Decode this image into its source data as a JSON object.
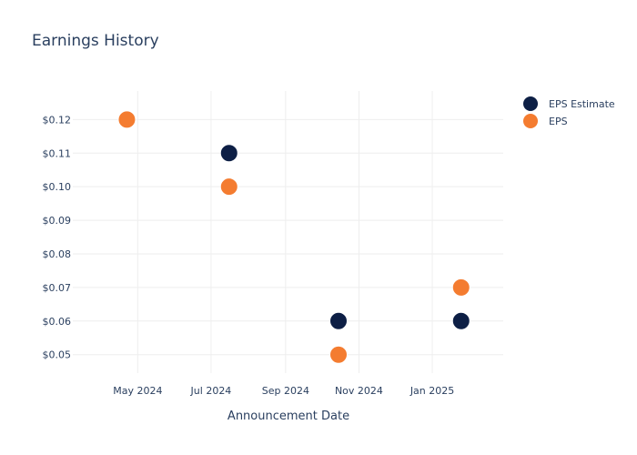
{
  "chart_data": {
    "type": "scatter",
    "title": "Earnings History",
    "xlabel": "Announcement Date",
    "ylabel": "",
    "x_axis_type": "date",
    "xlim": [
      "2024-03-08",
      "2025-03-01"
    ],
    "ylim": [
      0.0445,
      0.1285
    ],
    "y_ticks": [
      0.05,
      0.06,
      0.07,
      0.08,
      0.09,
      0.1,
      0.11,
      0.12
    ],
    "y_tick_labels": [
      "$0.05",
      "$0.06",
      "$0.07",
      "$0.08",
      "$0.09",
      "$0.10",
      "$0.11",
      "$0.12"
    ],
    "x_ticks": [
      "2024-05-01",
      "2024-07-01",
      "2024-09-01",
      "2024-11-01",
      "2025-01-01"
    ],
    "x_tick_labels": [
      "May 2024",
      "Jul 2024",
      "Sep 2024",
      "Nov 2024",
      "Jan 2025"
    ],
    "grid": true,
    "legend_position": "top-right",
    "series": [
      {
        "name": "EPS Estimate",
        "color": "#0d1f45",
        "points": [
          {
            "x": "2024-04-22",
            "y": 0.12
          },
          {
            "x": "2024-07-16",
            "y": 0.11
          },
          {
            "x": "2024-10-15",
            "y": 0.06
          },
          {
            "x": "2025-01-25",
            "y": 0.06
          }
        ]
      },
      {
        "name": "EPS",
        "color": "#f47c30",
        "points": [
          {
            "x": "2024-04-22",
            "y": 0.12
          },
          {
            "x": "2024-07-16",
            "y": 0.1
          },
          {
            "x": "2024-10-15",
            "y": 0.05
          },
          {
            "x": "2025-01-25",
            "y": 0.07
          }
        ]
      }
    ]
  }
}
